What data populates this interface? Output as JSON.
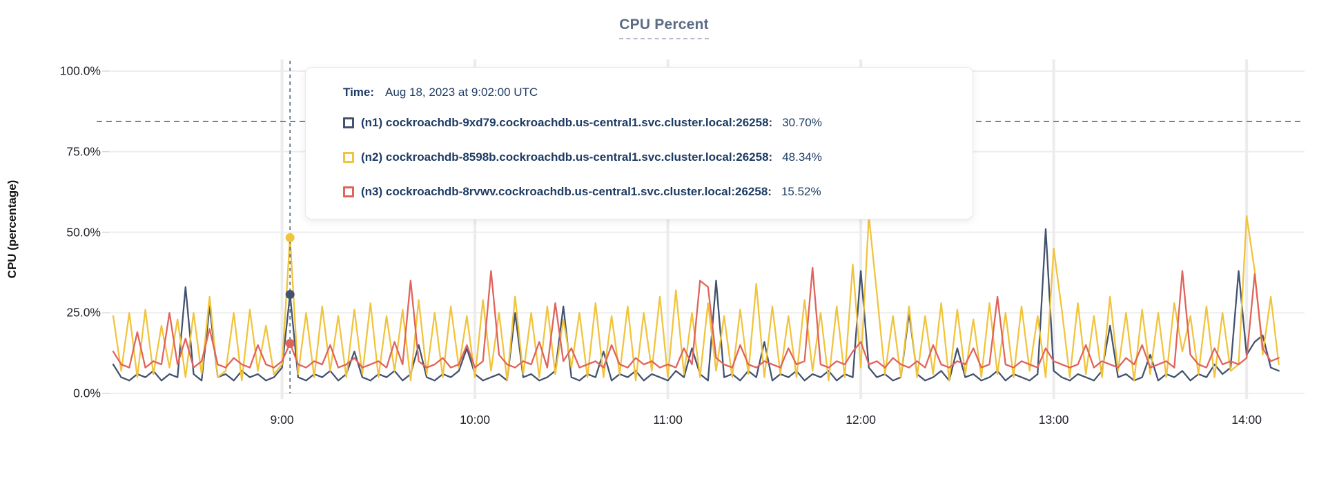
{
  "title": "CPU Percent",
  "y_axis_title": "CPU (percentage)",
  "tooltip": {
    "time_label": "Time:",
    "time_value": "Aug 18, 2023 at 9:02:00 UTC",
    "rows": [
      {
        "label": "(n1) cockroachdb-9xd79.cockroachdb.us-central1.svc.cluster.local:26258:",
        "value": "30.70%",
        "color": "#43536f"
      },
      {
        "label": "(n2) cockroachdb-8598b.cockroachdb.us-central1.svc.cluster.local:26258:",
        "value": "48.34%",
        "color": "#f1c43d"
      },
      {
        "label": "(n3) cockroachdb-8rvwv.cockroachdb.us-central1.svc.cluster.local:26258:",
        "value": "15.52%",
        "color": "#e0635c"
      }
    ]
  },
  "colors": {
    "title": "#5b6c84",
    "tooltip_text": "#1e3b63",
    "grid": "#ededed",
    "grid_vertical": "#ececec",
    "tick": "#d5d9de",
    "crosshair": "#5f7186",
    "threshold": "#5f7186"
  },
  "chart_data": {
    "type": "line",
    "title": "CPU Percent",
    "xlabel": "",
    "ylabel": "CPU (percentage)",
    "ylim": [
      0,
      100
    ],
    "grid": true,
    "legend_position": "hover-tooltip",
    "y_ticks": [
      {
        "value": 0,
        "label": "0.0%"
      },
      {
        "value": 25,
        "label": "25.0%"
      },
      {
        "value": 50,
        "label": "50.0%"
      },
      {
        "value": 75,
        "label": "75.0%"
      },
      {
        "value": 100,
        "label": "100.0%"
      }
    ],
    "x_ticks": [
      {
        "minute": 540,
        "label": "9:00"
      },
      {
        "minute": 600,
        "label": "10:00"
      },
      {
        "minute": 660,
        "label": "11:00"
      },
      {
        "minute": 720,
        "label": "12:00"
      },
      {
        "minute": 780,
        "label": "13:00"
      },
      {
        "minute": 840,
        "label": "14:00"
      }
    ],
    "x_domain_minutes": [
      486,
      858
    ],
    "x_start_minute": 487.5,
    "x_step_minutes": 2.5,
    "threshold_percent": 84.4,
    "hover": {
      "index": 22,
      "time_minute": 542.5,
      "time_text": "Aug 18, 2023 at 9:02:00 UTC"
    },
    "series": [
      {
        "name": "(n1) cockroachdb-9xd79.cockroachdb.us-central1.svc.cluster.local:26258",
        "color": "#43536f",
        "hover_value_percent": 30.7,
        "values": [
          9,
          5,
          4,
          6,
          5,
          7,
          4,
          6,
          5,
          33,
          6,
          4,
          27,
          5,
          6,
          4,
          7,
          5,
          6,
          4,
          5,
          8,
          30.7,
          5,
          4,
          6,
          5,
          7,
          4,
          6,
          13,
          5,
          4,
          6,
          5,
          7,
          4,
          6,
          15,
          5,
          4,
          6,
          5,
          7,
          14,
          6,
          4,
          5,
          6,
          4,
          25,
          5,
          6,
          4,
          5,
          7,
          27,
          5,
          4,
          6,
          5,
          13,
          4,
          6,
          5,
          7,
          4,
          6,
          5,
          4,
          7,
          5,
          14,
          6,
          4,
          35,
          5,
          6,
          4,
          7,
          5,
          16,
          4,
          6,
          5,
          7,
          4,
          6,
          5,
          7,
          4,
          6,
          5,
          38,
          8,
          5,
          6,
          4,
          5,
          25,
          6,
          4,
          5,
          7,
          4,
          14,
          5,
          6,
          4,
          5,
          7,
          4,
          6,
          5,
          4,
          6,
          51,
          7,
          5,
          4,
          6,
          5,
          4,
          7,
          21,
          5,
          6,
          4,
          5,
          12,
          4,
          6,
          5,
          7,
          4,
          6,
          5,
          9,
          6,
          8,
          38,
          12,
          16,
          18,
          8,
          7
        ]
      },
      {
        "name": "(n2) cockroachdb-8598b.cockroachdb.us-central1.svc.cluster.local:26258",
        "color": "#f1c43d",
        "hover_value_percent": 48.34,
        "values": [
          24,
          7,
          25,
          5,
          26,
          6,
          21,
          8,
          23,
          5,
          25,
          6,
          30,
          5,
          7,
          25,
          4,
          26,
          7,
          21,
          6,
          9,
          48.34,
          6,
          25,
          5,
          27,
          7,
          24,
          5,
          26,
          6,
          28,
          5,
          24,
          7,
          26,
          4,
          29,
          6,
          25,
          5,
          27,
          8,
          24,
          5,
          29,
          7,
          25,
          4,
          30,
          6,
          25,
          5,
          27,
          6,
          23,
          8,
          25,
          5,
          28,
          5,
          24,
          6,
          27,
          4,
          25,
          7,
          30,
          5,
          32,
          6,
          25,
          5,
          28,
          7,
          24,
          5,
          26,
          6,
          34,
          5,
          27,
          6,
          24,
          5,
          29,
          7,
          25,
          4,
          27,
          5,
          40,
          8,
          55,
          31,
          6,
          24,
          5,
          27,
          5,
          24,
          6,
          28,
          4,
          26,
          6,
          23,
          5,
          28,
          6,
          25,
          5,
          27,
          7,
          24,
          5,
          45,
          26,
          5,
          28,
          6,
          24,
          5,
          30,
          7,
          25,
          4,
          26,
          6,
          25,
          5,
          28,
          13,
          24,
          6,
          27,
          5,
          25,
          7,
          9,
          55,
          38,
          12,
          30,
          9
        ]
      },
      {
        "name": "(n3) cockroachdb-8rvwv.cockroachdb.us-central1.svc.cluster.local:26258",
        "color": "#e0635c",
        "hover_value_percent": 15.52,
        "values": [
          13,
          9,
          8,
          19,
          8,
          10,
          9,
          25,
          9,
          17,
          8,
          10,
          20,
          9,
          8,
          11,
          9,
          8,
          15,
          9,
          8,
          10,
          15.52,
          9,
          8,
          10,
          9,
          15,
          8,
          9,
          11,
          8,
          9,
          10,
          8,
          16,
          9,
          35,
          10,
          8,
          9,
          11,
          8,
          9,
          15,
          8,
          10,
          38,
          12,
          9,
          8,
          10,
          9,
          16,
          8,
          28,
          10,
          14,
          8,
          9,
          10,
          8,
          15,
          9,
          8,
          11,
          9,
          10,
          8,
          9,
          8,
          14,
          9,
          35,
          33,
          11,
          9,
          8,
          15,
          9,
          8,
          10,
          9,
          8,
          14,
          9,
          10,
          39,
          9,
          8,
          10,
          9,
          13,
          16,
          9,
          10,
          8,
          11,
          9,
          8,
          10,
          8,
          15,
          9,
          8,
          10,
          9,
          14,
          8,
          9,
          30,
          9,
          8,
          10,
          9,
          8,
          14,
          10,
          9,
          8,
          9,
          15,
          8,
          10,
          9,
          8,
          11,
          9,
          15,
          8,
          9,
          10,
          8,
          38,
          12,
          9,
          8,
          14,
          9,
          10,
          9,
          11,
          37,
          14,
          10,
          11
        ]
      }
    ]
  }
}
